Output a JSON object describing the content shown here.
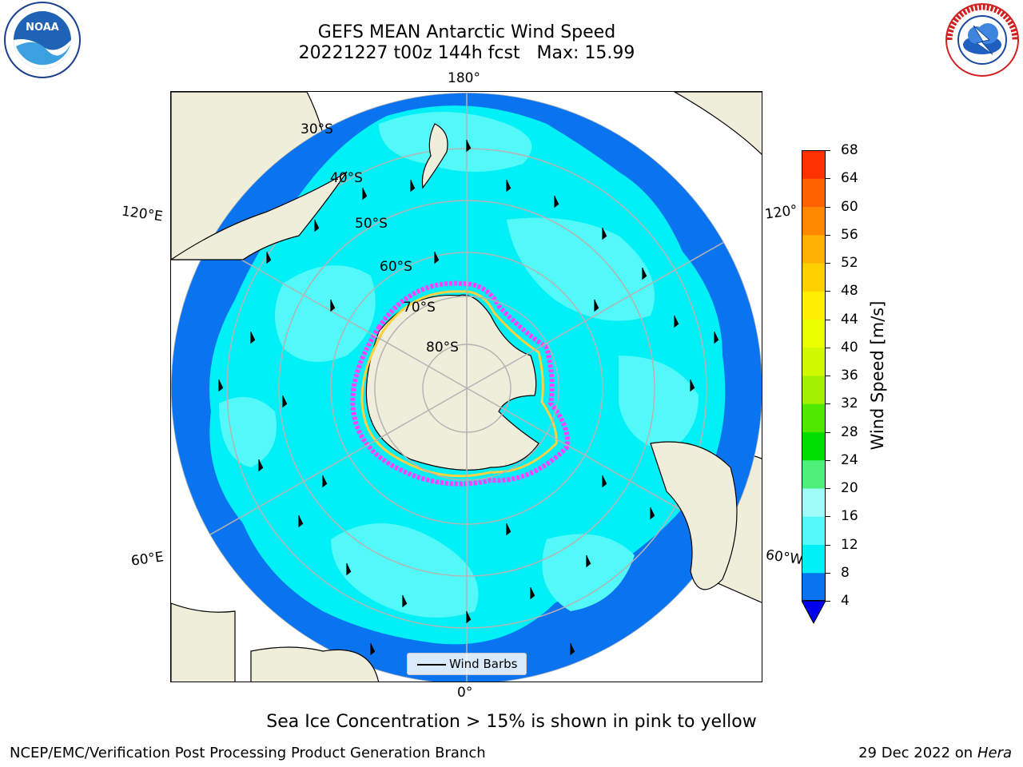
{
  "title": {
    "line1": "GEFS MEAN Antarctic Wind Speed",
    "line2": "20221227 t00z 144h fcst   Max: 15.99"
  },
  "logos": [
    {
      "name": "NOAA",
      "icon": "noaa-logo-icon",
      "text": "NOAA"
    },
    {
      "name": "National Weather Service",
      "icon": "nws-logo-icon",
      "text": "NATIONAL WEATHER SERVICE"
    }
  ],
  "map": {
    "projection": "south-polar-stereographic",
    "lon_labels": {
      "top": "180°",
      "bottom": "0°",
      "left_upper": "120°E",
      "left_lower": "60°E",
      "right_upper": "120°",
      "right_lower": "60°W"
    },
    "lat_labels": [
      "30°S",
      "40°S",
      "50°S",
      "60°S",
      "70°S",
      "80°S"
    ],
    "colors": {
      "land": "#efeedb",
      "ocean_low": "#0a74f0",
      "ocean_mid": "#00f0f8",
      "ocean_high": "#53f8f8",
      "ice_pink": "#ff40ff",
      "ice_yellow": "#ffd040",
      "grid": "#b4b4b4"
    },
    "legend": "Wind Barbs"
  },
  "colorbar": {
    "label": "Wind Speed [m/s]",
    "ticks": [
      "68",
      "64",
      "60",
      "56",
      "52",
      "48",
      "44",
      "40",
      "36",
      "32",
      "28",
      "24",
      "20",
      "16",
      "12",
      "8",
      "4"
    ],
    "colors": [
      "#0a74f0",
      "#00f0f8",
      "#53f8f8",
      "#a0fcf8",
      "#4ef07a",
      "#00e000",
      "#50e800",
      "#a0f000",
      "#d0f800",
      "#eaff00",
      "#ffee00",
      "#ffd000",
      "#ffb000",
      "#ff8800",
      "#ff6000",
      "#ff3000",
      "#ff0000"
    ],
    "extend_color": "#0000ee"
  },
  "subtitle": "Sea Ice Concentration > 15% is shown in pink to yellow",
  "footer": {
    "left": "NCEP/EMC/Verification Post Processing Product Generation Branch",
    "right_date": "29 Dec 2022 on",
    "right_machine": "Hera"
  }
}
